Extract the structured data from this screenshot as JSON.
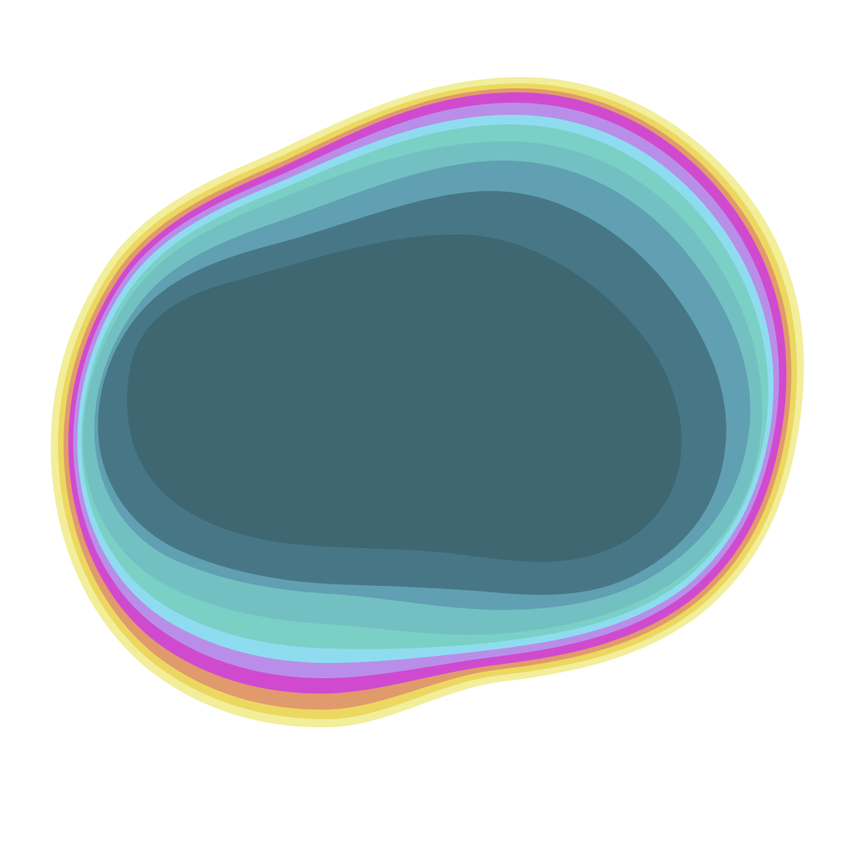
{
  "artwork": {
    "background_color": "#ffffff",
    "layers": [
      {
        "name": "pale-yellow",
        "color": "#f2ee9a"
      },
      {
        "name": "yellow",
        "color": "#ecd860"
      },
      {
        "name": "orange",
        "color": "#e19a6c"
      },
      {
        "name": "magenta",
        "color": "#d04ad0"
      },
      {
        "name": "lavender",
        "color": "#b98ee8"
      },
      {
        "name": "sky-blue",
        "color": "#8fdcf0"
      },
      {
        "name": "mint",
        "color": "#7bd0c6"
      },
      {
        "name": "teal",
        "color": "#73c0c2"
      },
      {
        "name": "steel-teal",
        "color": "#60a0b2"
      },
      {
        "name": "slate-teal",
        "color": "#477787"
      },
      {
        "name": "deep-slate",
        "color": "#3e6772"
      }
    ]
  }
}
